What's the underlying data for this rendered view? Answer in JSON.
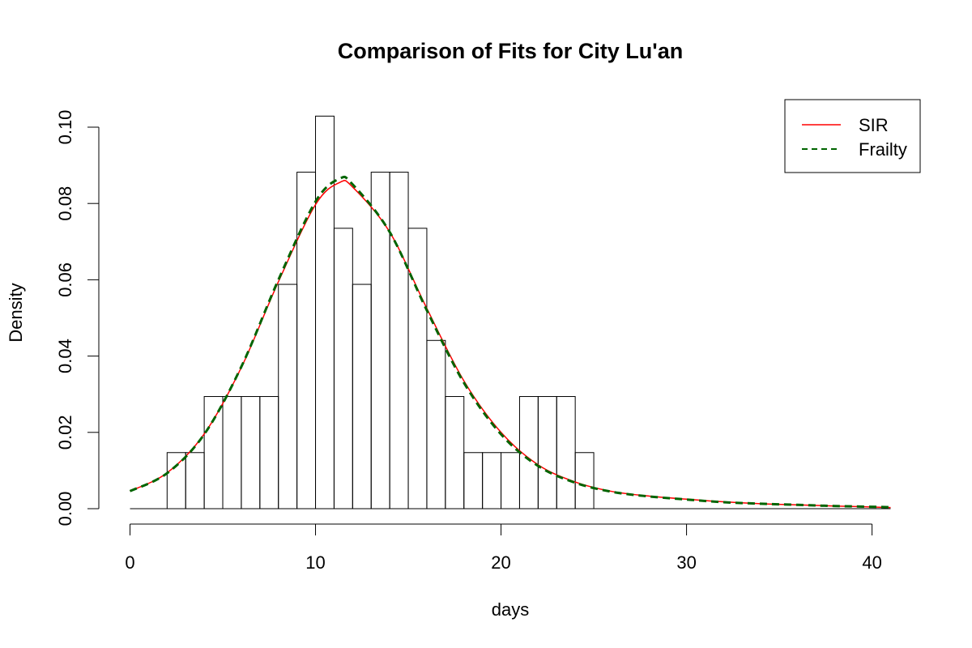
{
  "chart_data": {
    "type": "bar",
    "title": "Comparison of Fits for City Lu'an",
    "xlabel": "days",
    "ylabel": "Density",
    "xlim": [
      0,
      41
    ],
    "ylim": [
      0,
      0.1
    ],
    "x_ticks": [
      "0",
      "10",
      "20",
      "30",
      "40"
    ],
    "y_ticks": [
      "0.00",
      "0.02",
      "0.04",
      "0.06",
      "0.08",
      "0.10"
    ],
    "grid": false,
    "histogram": {
      "bin_start": 2,
      "bin_width": 1,
      "densities": [
        0.0147,
        0.0147,
        0.0294,
        0.0294,
        0.0294,
        0.0294,
        0.0588,
        0.0882,
        0.1029,
        0.0735,
        0.0588,
        0.0882,
        0.0882,
        0.0735,
        0.0441,
        0.0294,
        0.0147,
        0.0147,
        0.0147,
        0.0294,
        0.0294,
        0.0294,
        0.0147
      ]
    },
    "series": [
      {
        "name": "SIR",
        "color": "#ff0000",
        "style": "solid",
        "x": [
          0,
          2,
          4,
          6,
          8,
          10,
          11.3,
          12,
          14,
          16,
          18,
          20,
          22,
          24,
          26,
          28,
          30,
          32,
          34,
          36,
          38,
          41
        ],
        "y": [
          0.0046,
          0.0094,
          0.0196,
          0.037,
          0.0595,
          0.0797,
          0.0855,
          0.0843,
          0.0725,
          0.0525,
          0.0335,
          0.02,
          0.0115,
          0.007,
          0.0045,
          0.0033,
          0.0025,
          0.0018,
          0.0013,
          0.001,
          0.0007,
          0.0003
        ]
      },
      {
        "name": "Frailty",
        "color": "#006400",
        "style": "dashed",
        "x": [
          0,
          2,
          4,
          6,
          8,
          10,
          11.3,
          12,
          14,
          16,
          18,
          20,
          22,
          24,
          26,
          28,
          30,
          32,
          34,
          36,
          38,
          41
        ],
        "y": [
          0.0046,
          0.0093,
          0.0195,
          0.0372,
          0.06,
          0.0805,
          0.0865,
          0.085,
          0.0725,
          0.052,
          0.033,
          0.0195,
          0.0112,
          0.0068,
          0.0044,
          0.0032,
          0.0024,
          0.0017,
          0.0013,
          0.001,
          0.0007,
          0.0004
        ]
      }
    ],
    "legend": {
      "placement": "top-right",
      "entries": [
        "SIR",
        "Frailty"
      ]
    }
  }
}
